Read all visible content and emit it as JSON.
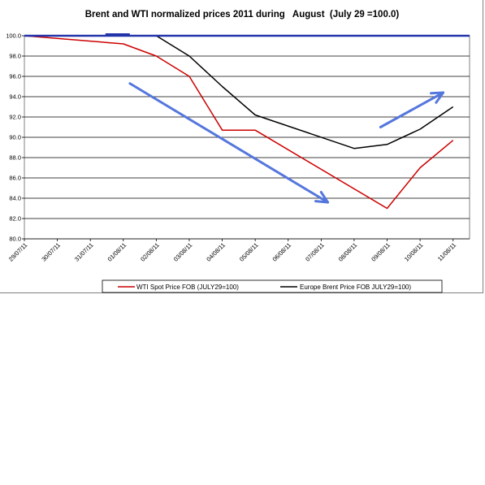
{
  "chart_data": {
    "type": "line",
    "title": "Brent and WTI normalized prices 2011 during   August  (July 29 =100.0)",
    "xlabel": "",
    "ylabel": "",
    "categories": [
      "29/07/11",
      "30/07/11",
      "31/07/11",
      "01/08/11",
      "02/08/11",
      "03/08/11",
      "04/08/11",
      "05/08/11",
      "06/08/11",
      "07/08/11",
      "08/08/11",
      "09/08/11",
      "10/08/11",
      "11/08/11"
    ],
    "ylim": [
      80,
      100
    ],
    "yticks": [
      "80.0",
      "82.0",
      "84.0",
      "86.0",
      "88.0",
      "90.0",
      "92.0",
      "94.0",
      "96.0",
      "98.0",
      "100.0"
    ],
    "grid": true,
    "legend_position": "bottom",
    "series": [
      {
        "name": "WTI Spot Price FOB (JULY29=100)",
        "color": "#cc0000",
        "values": [
          100.0,
          null,
          null,
          99.2,
          98.0,
          96.0,
          90.7,
          90.7,
          null,
          null,
          null,
          83.0,
          87.0,
          89.7
        ]
      },
      {
        "name": "Europe Brent Price FOB JULY29=100)",
        "color": "#000000",
        "values": [
          null,
          null,
          null,
          102.0,
          100.0,
          98.0,
          95.0,
          92.2,
          null,
          null,
          88.9,
          89.3,
          90.8,
          93.0
        ]
      }
    ],
    "annotations": [
      {
        "kind": "horizontal-line",
        "y": 100.0,
        "color": "#2233aa"
      },
      {
        "kind": "arrow",
        "direction": "down",
        "color": "#5577dd"
      },
      {
        "kind": "arrow",
        "direction": "up",
        "color": "#5577dd"
      }
    ]
  }
}
